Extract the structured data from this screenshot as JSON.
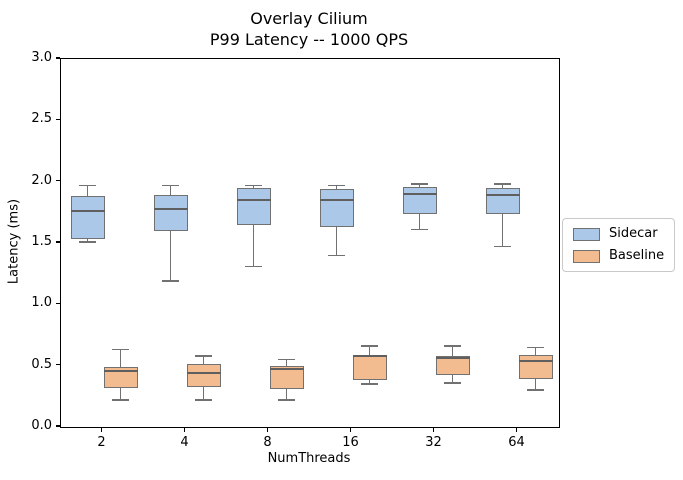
{
  "chart_data": {
    "type": "boxplot",
    "title_lines": [
      "Overlay Cilium",
      "P99 Latency -- 1000 QPS"
    ],
    "xlabel": "NumThreads",
    "ylabel": "Latency (ms)",
    "categories": [
      "2",
      "4",
      "8",
      "16",
      "32",
      "64"
    ],
    "ylim": [
      0.0,
      3.0
    ],
    "ytick_labels": [
      "0.0",
      "0.5",
      "1.0",
      "1.5",
      "2.0",
      "2.5",
      "3.0"
    ],
    "grid": false,
    "legend": {
      "position": "outside-right",
      "entries": [
        "Sidecar",
        "Baseline"
      ]
    },
    "series": [
      {
        "name": "Sidecar",
        "fill_color": "#abc8e8",
        "boxes": [
          {
            "whislo": 1.51,
            "q1": 1.53,
            "med": 1.76,
            "q3": 1.88,
            "whishi": 1.97
          },
          {
            "whislo": 1.19,
            "q1": 1.6,
            "med": 1.78,
            "q3": 1.89,
            "whishi": 1.97
          },
          {
            "whislo": 1.31,
            "q1": 1.65,
            "med": 1.85,
            "q3": 1.95,
            "whishi": 1.97
          },
          {
            "whislo": 1.4,
            "q1": 1.63,
            "med": 1.85,
            "q3": 1.94,
            "whishi": 1.97
          },
          {
            "whislo": 1.61,
            "q1": 1.74,
            "med": 1.9,
            "q3": 1.96,
            "whishi": 1.98
          },
          {
            "whislo": 1.47,
            "q1": 1.74,
            "med": 1.89,
            "q3": 1.95,
            "whishi": 1.98
          }
        ]
      },
      {
        "name": "Baseline",
        "fill_color": "#f2bb90",
        "boxes": [
          {
            "whislo": 0.22,
            "q1": 0.32,
            "med": 0.46,
            "q3": 0.49,
            "whishi": 0.63
          },
          {
            "whislo": 0.22,
            "q1": 0.33,
            "med": 0.44,
            "q3": 0.51,
            "whishi": 0.58
          },
          {
            "whislo": 0.22,
            "q1": 0.31,
            "med": 0.47,
            "q3": 0.5,
            "whishi": 0.55
          },
          {
            "whislo": 0.35,
            "q1": 0.38,
            "med": 0.58,
            "q3": 0.59,
            "whishi": 0.66
          },
          {
            "whislo": 0.36,
            "q1": 0.42,
            "med": 0.56,
            "q3": 0.58,
            "whishi": 0.66
          },
          {
            "whislo": 0.3,
            "q1": 0.39,
            "med": 0.54,
            "q3": 0.59,
            "whishi": 0.65
          }
        ]
      }
    ],
    "style": {
      "edge_color": "#717171",
      "median_color": "#5f5f5f",
      "spine_color": "#000000",
      "background": "#ffffff"
    }
  }
}
